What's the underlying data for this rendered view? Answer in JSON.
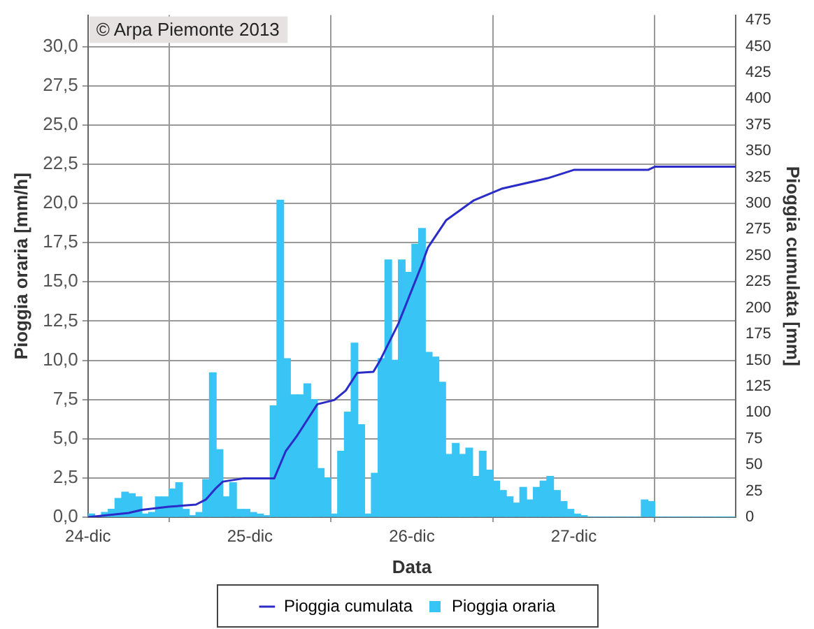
{
  "chart_data": {
    "type": "bar",
    "xlabel": "Data",
    "ylabel": "Pioggia oraria [mm/h]",
    "y2label": "Pioggia cumulata [mm]",
    "annotations": [
      "© Arpa Piemonte 2013"
    ],
    "x": [
      "--12-24T00:30",
      "--12-24T01:30",
      "--12-24T02:30",
      "--12-24T03:30",
      "--12-24T04:30",
      "--12-24T05:30",
      "--12-24T06:30",
      "--12-24T07:30",
      "--12-24T08:30",
      "--12-24T09:30",
      "--12-24T10:30",
      "--12-24T11:30",
      "--12-24T12:30",
      "--12-24T13:30",
      "--12-24T14:30",
      "--12-24T15:30",
      "--12-24T16:30",
      "--12-24T17:30",
      "--12-24T18:30",
      "--12-24T19:30",
      "--12-24T20:30",
      "--12-24T21:30",
      "--12-24T22:30",
      "--12-24T23:30",
      "--12-25T00:30",
      "--12-25T01:30",
      "--12-25T02:30",
      "--12-25T03:30",
      "--12-25T04:30",
      "--12-25T05:30",
      "--12-25T06:30",
      "--12-25T07:30",
      "--12-25T08:30",
      "--12-25T09:30",
      "--12-25T10:30",
      "--12-25T11:30",
      "--12-25T12:30",
      "--12-25T13:30",
      "--12-25T14:30",
      "--12-25T15:30",
      "--12-25T16:30",
      "--12-25T17:30",
      "--12-25T18:30",
      "--12-25T19:30",
      "--12-25T20:30",
      "--12-25T21:30",
      "--12-25T22:30",
      "--12-25T23:30",
      "--12-26T00:30",
      "--12-26T01:30",
      "--12-26T02:30",
      "--12-26T03:30",
      "--12-26T04:30",
      "--12-26T05:30",
      "--12-26T06:30",
      "--12-26T07:30",
      "--12-26T08:30",
      "--12-26T09:30",
      "--12-26T10:30",
      "--12-26T11:30",
      "--12-26T12:30",
      "--12-26T13:30",
      "--12-26T14:30",
      "--12-26T15:30",
      "--12-26T16:30",
      "--12-26T17:30",
      "--12-26T18:30",
      "--12-26T19:30",
      "--12-26T20:30",
      "--12-26T21:30",
      "--12-26T22:30",
      "--12-26T23:30",
      "--12-27T00:30",
      "--12-27T01:30",
      "--12-27T02:30",
      "--12-27T03:30",
      "--12-27T04:30",
      "--12-27T05:30",
      "--12-27T06:30",
      "--12-27T07:30",
      "--12-27T08:30",
      "--12-27T09:30",
      "--12-27T10:30",
      "--12-27T11:30",
      "--12-27T12:30",
      "--12-27T13:30",
      "--12-27T14:30",
      "--12-27T15:30",
      "--12-27T16:30",
      "--12-27T17:30",
      "--12-27T18:30",
      "--12-27T19:30",
      "--12-27T20:30",
      "--12-27T21:30",
      "--12-27T22:30",
      "--12-27T23:30"
    ],
    "series": [
      {
        "name": "Pioggia cumulata",
        "type": "line",
        "axis": "y2",
        "color": "#2b2bc8",
        "x": [
          "--12-24T00:00",
          "--12-24T06:00",
          "--12-24T08:00",
          "--12-24T12:00",
          "--12-24T16:00",
          "--12-24T17:30",
          "--12-24T19:00",
          "--12-24T20:00",
          "--12-24T23:00",
          "--12-25T03:36",
          "--12-25T05:18",
          "--12-25T07:00",
          "--12-25T10:00",
          "--12-25T12:30",
          "--12-25T14:12",
          "--12-25T15:54",
          "--12-25T18:18",
          "--12-25T19:18",
          "--12-25T22:00",
          "--12-26T01:24",
          "--12-26T02:24",
          "--12-26T05:06",
          "--12-26T09:12",
          "--12-26T13:18",
          "--12-26T20:06",
          "--12-27T00:00",
          "--12-27T11:00",
          "--12-27T12:00",
          "--12-28T00:00"
        ],
        "values": [
          0,
          4,
          7,
          10,
          12,
          17,
          28,
          34,
          37,
          37,
          63,
          78,
          108,
          112,
          121,
          138,
          139,
          150,
          185,
          240,
          258,
          284,
          303,
          314,
          324,
          332,
          332,
          335,
          335
        ]
      },
      {
        "name": "Pioggia oraria",
        "color": "#38c4f5",
        "values": [
          0.2,
          null,
          0.3,
          0.5,
          1.2,
          1.6,
          1.5,
          1.3,
          0.2,
          0.3,
          1.3,
          1.3,
          1.8,
          2.2,
          0.5,
          0.1,
          0.3,
          2.4,
          9.2,
          4.3,
          1.3,
          2.2,
          0.5,
          0.5,
          0.3,
          0.2,
          0.1,
          7.1,
          20.2,
          10.1,
          7.8,
          7.8,
          8.5,
          7.5,
          3.1,
          2.5,
          0.2,
          4.2,
          6.7,
          11.1,
          5.9,
          0.2,
          2.8,
          10.1,
          16.4,
          10.0,
          16.4,
          15.6,
          17.4,
          18.4,
          10.5,
          10.2,
          8.6,
          4.0,
          4.7,
          4.0,
          4.4,
          2.6,
          4.2,
          3.0,
          2.3,
          1.7,
          1.3,
          0.9,
          1.9,
          1.1,
          1.9,
          2.3,
          2.6,
          1.7,
          1.0,
          0.5,
          0.2,
          0.1,
          0,
          0,
          0,
          0,
          0,
          0,
          0,
          0,
          1.1,
          1.0,
          0,
          0,
          0,
          0,
          0,
          0,
          0,
          0,
          0,
          0,
          0,
          0
        ]
      }
    ],
    "xlim": [
      "--12-24",
      "--12-28"
    ],
    "xticks": [
      {
        "value": "--12-24",
        "label": "24-dic"
      },
      {
        "value": "--12-25",
        "label": "25-dic"
      },
      {
        "value": "--12-26",
        "label": "26-dic"
      },
      {
        "value": "--12-27",
        "label": "27-dic"
      }
    ],
    "ylim": [
      0,
      32
    ],
    "yticks": [
      {
        "value": 0,
        "label": "0,0"
      },
      {
        "value": 2.5,
        "label": "2,5"
      },
      {
        "value": 5,
        "label": "5,0"
      },
      {
        "value": 7.5,
        "label": "7,5"
      },
      {
        "value": 10,
        "label": "10,0"
      },
      {
        "value": 12.5,
        "label": "12,5"
      },
      {
        "value": 15,
        "label": "15,0"
      },
      {
        "value": 17.5,
        "label": "17,5"
      },
      {
        "value": 20,
        "label": "20,0"
      },
      {
        "value": 22.5,
        "label": "22,5"
      },
      {
        "value": 25,
        "label": "25,0"
      },
      {
        "value": 27.5,
        "label": "27,5"
      },
      {
        "value": 30,
        "label": "30,0"
      }
    ],
    "y2lim": [
      0,
      480
    ],
    "y2ticks": [
      0,
      25,
      50,
      75,
      100,
      125,
      150,
      175,
      200,
      225,
      250,
      275,
      300,
      325,
      350,
      375,
      400,
      425,
      450,
      475
    ],
    "grid": true,
    "legend": "bottom",
    "marker": "none"
  }
}
